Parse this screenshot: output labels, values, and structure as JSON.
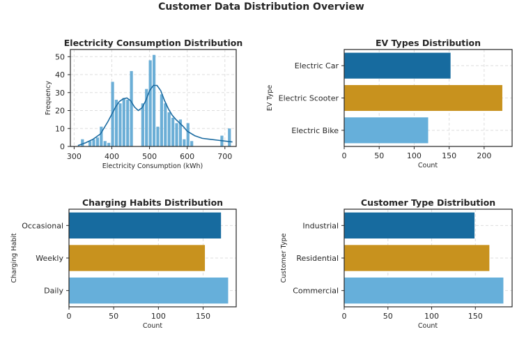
{
  "figure": {
    "title": "Customer Data Distribution Overview"
  },
  "chart_data": [
    {
      "id": "consumption",
      "type": "bar",
      "kind": "histogram-with-kde",
      "title": "Electricity Consumption Distribution",
      "xlabel": "Electricity Consumption (kWh)",
      "ylabel": "Frequency",
      "xlim": [
        290,
        730
      ],
      "ylim": [
        0,
        54
      ],
      "xticks": [
        300,
        400,
        500,
        600,
        700
      ],
      "yticks": [
        0,
        10,
        20,
        30,
        40,
        50
      ],
      "grid": true,
      "color": "#6BAED6",
      "kde_color": "#1A6AA0",
      "bins": [
        {
          "x0": 317,
          "x1": 327,
          "value": 4
        },
        {
          "x0": 327,
          "x1": 337,
          "value": 0
        },
        {
          "x0": 337,
          "x1": 347,
          "value": 3
        },
        {
          "x0": 347,
          "x1": 357,
          "value": 4
        },
        {
          "x0": 357,
          "x1": 367,
          "value": 5
        },
        {
          "x0": 367,
          "x1": 377,
          "value": 11
        },
        {
          "x0": 377,
          "x1": 387,
          "value": 3
        },
        {
          "x0": 387,
          "x1": 397,
          "value": 2
        },
        {
          "x0": 397,
          "x1": 407,
          "value": 36
        },
        {
          "x0": 407,
          "x1": 417,
          "value": 26
        },
        {
          "x0": 417,
          "x1": 427,
          "value": 24
        },
        {
          "x0": 427,
          "x1": 437,
          "value": 27
        },
        {
          "x0": 437,
          "x1": 447,
          "value": 26
        },
        {
          "x0": 447,
          "x1": 457,
          "value": 42
        },
        {
          "x0": 457,
          "x1": 467,
          "value": 0
        },
        {
          "x0": 467,
          "x1": 477,
          "value": 0
        },
        {
          "x0": 477,
          "x1": 487,
          "value": 24
        },
        {
          "x0": 487,
          "x1": 497,
          "value": 32
        },
        {
          "x0": 497,
          "x1": 507,
          "value": 48
        },
        {
          "x0": 507,
          "x1": 517,
          "value": 51
        },
        {
          "x0": 517,
          "x1": 527,
          "value": 11
        },
        {
          "x0": 527,
          "x1": 537,
          "value": 29
        },
        {
          "x0": 537,
          "x1": 547,
          "value": 24
        },
        {
          "x0": 547,
          "x1": 557,
          "value": 19
        },
        {
          "x0": 557,
          "x1": 567,
          "value": 16
        },
        {
          "x0": 567,
          "x1": 577,
          "value": 13
        },
        {
          "x0": 577,
          "x1": 587,
          "value": 15
        },
        {
          "x0": 587,
          "x1": 597,
          "value": 4
        },
        {
          "x0": 597,
          "x1": 607,
          "value": 13
        },
        {
          "x0": 607,
          "x1": 617,
          "value": 3
        },
        {
          "x0": 617,
          "x1": 627,
          "value": 0
        },
        {
          "x0": 627,
          "x1": 637,
          "value": 0
        },
        {
          "x0": 637,
          "x1": 647,
          "value": 0
        },
        {
          "x0": 647,
          "x1": 657,
          "value": 0
        },
        {
          "x0": 657,
          "x1": 667,
          "value": 0
        },
        {
          "x0": 667,
          "x1": 677,
          "value": 0
        },
        {
          "x0": 677,
          "x1": 687,
          "value": 0
        },
        {
          "x0": 687,
          "x1": 697,
          "value": 6
        },
        {
          "x0": 697,
          "x1": 707,
          "value": 0
        },
        {
          "x0": 707,
          "x1": 717,
          "value": 10
        }
      ],
      "kde": {
        "x": [
          310,
          330,
          350,
          370,
          390,
          410,
          420,
          430,
          440,
          450,
          460,
          470,
          480,
          490,
          500,
          510,
          520,
          530,
          540,
          550,
          560,
          570,
          580,
          590,
          600,
          620,
          640,
          660,
          680,
          700,
          720
        ],
        "y": [
          0.5,
          2,
          4,
          7,
          14,
          22,
          25,
          26.5,
          27,
          25.5,
          22,
          20,
          21.5,
          25.5,
          31,
          34,
          34,
          31,
          25.5,
          21,
          17.5,
          15,
          13,
          11,
          8.5,
          6,
          4.5,
          4,
          3.5,
          3,
          2.5
        ]
      }
    },
    {
      "id": "ev_types",
      "type": "bar",
      "orientation": "horizontal",
      "title": "EV Types Distribution",
      "xlabel": "Count",
      "ylabel": "EV Type",
      "xlim": [
        0,
        240
      ],
      "xticks": [
        0,
        50,
        100,
        150,
        200
      ],
      "grid": true,
      "categories": [
        "Electric Car",
        "Electric Scooter",
        "Electric Bike"
      ],
      "values": [
        152,
        226,
        120
      ],
      "colors": [
        "#176B9F",
        "#C8921E",
        "#66AFDA"
      ]
    },
    {
      "id": "charging_habits",
      "type": "bar",
      "orientation": "horizontal",
      "title": "Charging Habits Distribution",
      "xlabel": "Count",
      "ylabel": "Charging Habit",
      "xlim": [
        0,
        187
      ],
      "xticks": [
        0,
        50,
        100,
        150
      ],
      "grid": true,
      "categories": [
        "Occasional",
        "Weekly",
        "Daily"
      ],
      "values": [
        170,
        152,
        178
      ],
      "colors": [
        "#176B9F",
        "#C8921E",
        "#66AFDA"
      ]
    },
    {
      "id": "customer_types",
      "type": "bar",
      "orientation": "horizontal",
      "title": "Customer Type Distribution",
      "xlabel": "Count",
      "ylabel": "Customer Type",
      "xlim": [
        0,
        192
      ],
      "xticks": [
        0,
        50,
        100,
        150
      ],
      "grid": true,
      "categories": [
        "Industrial",
        "Residential",
        "Commercial"
      ],
      "values": [
        149,
        166,
        182
      ],
      "colors": [
        "#176B9F",
        "#C8921E",
        "#66AFDA"
      ]
    }
  ]
}
